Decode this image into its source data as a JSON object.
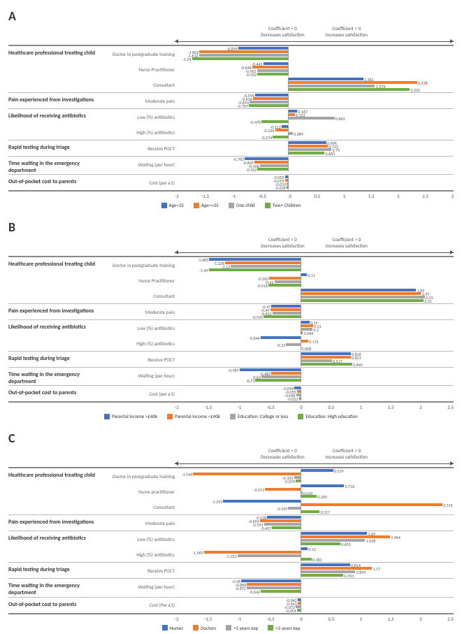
{
  "colors": {
    "blue": "#4472c4",
    "orange": "#ed7d31",
    "gray": "#a5a5a5",
    "green": "#70ad47"
  },
  "header": {
    "left": "Coefficient < 0\nDecreases satisfaction",
    "right": "Coefficient > 0\nIncreases satisfaction"
  },
  "panels": [
    {
      "letter": "A",
      "xmin": -2,
      "xmax": 3,
      "xstep": 0.5,
      "legend": [
        {
          "c": "blue",
          "t": "Age<35"
        },
        {
          "c": "orange",
          "t": "Age>=35"
        },
        {
          "c": "gray",
          "t": "One child"
        },
        {
          "c": "green",
          "t": "Two+ Children"
        }
      ],
      "cats": [
        {
          "t": "Healthcare professional treating child",
          "rows": [
            {
              "t": "Doctor in postgraduate training",
              "v": [
                -0.899,
                -1.602,
                -1.612,
                -1.74
              ]
            },
            {
              "t": "Nurse Practitioner",
              "v": [
                -0.445,
                -0.648,
                -0.562,
                -0.552
              ]
            },
            {
              "t": "Consultant",
              "v": [
                1.363,
                2.338,
                1.574,
                2.202
              ]
            }
          ]
        },
        {
          "t": "Pain experienced from investigations",
          "rows": [
            {
              "t": "Moderate pain",
              "v": [
                -0.594,
                -0.634,
                -0.694,
                -0.707
              ]
            }
          ]
        },
        {
          "t": "Likelihood of receiving antibiotics",
          "rows": [
            {
              "t": "Low (%) antibiotics",
              "v": [
                0.167,
                0.122,
                0.843,
                -0.478
              ]
            },
            {
              "t": "High (%) antibiotics",
              "v": [
                -0.112,
                -0.234,
                0.089,
                -0.274
              ]
            }
          ]
        },
        {
          "t": "Rapid testing during triage",
          "rows": [
            {
              "t": "Receive POCT",
              "v": [
                0.696,
                0.722,
                0.79,
                0.663
              ]
            }
          ]
        },
        {
          "t": "Time waiting in the emergency department",
          "rows": [
            {
              "t": "Waiting (per hour)",
              "v": [
                -0.783,
                -0.609,
                -0.506,
                -0.552
              ]
            }
          ]
        },
        {
          "t": "Out-of-pocket cost to parents",
          "rows": [
            {
              "t": "Cost (per £1)",
              "v": [
                -0.055,
                -0.055,
                -0.019,
                -0.028
              ]
            }
          ]
        }
      ]
    },
    {
      "letter": "B",
      "xmin": -2,
      "xmax": 2.5,
      "xstep": 0.5,
      "legend": [
        {
          "c": "blue",
          "t": "Parental income >£40k"
        },
        {
          "c": "orange",
          "t": "Parental income <£40k"
        },
        {
          "c": "gray",
          "t": "Education: College or less"
        },
        {
          "c": "green",
          "t": "Education: High education"
        }
      ],
      "cats": [
        {
          "t": "Healthcare professional treating child",
          "rows": [
            {
              "t": "Doctor in postgraduate training",
              "v": [
                -1.485,
                -1.226,
                -1.13,
                -1.49
              ]
            },
            {
              "t": "Nurse Practitioner",
              "v": [
                0.11,
                -0.503,
                -0.42,
                -0.516
              ]
            },
            {
              "t": "Consultant",
              "v": [
                1.89,
                1.97,
                2.03,
                2.01
              ]
            }
          ]
        },
        {
          "t": "Pain experienced from investigations",
          "rows": [
            {
              "t": "Moderate pain",
              "v": [
                -0.47,
                -0.49,
                -0.452,
                -0.595
              ]
            }
          ]
        },
        {
          "t": "Likelihood of receiving antibiotics",
          "rows": [
            {
              "t": "Low (%) antibiotics",
              "v": [
                0.15,
                0.21,
                0.2,
                0.044
              ]
            },
            {
              "t": "High (%) antibiotics",
              "v": [
                -0.644,
                0.131,
                -0.23,
                0.008
              ]
            }
          ]
        },
        {
          "t": "Rapid testing during triage",
          "rows": [
            {
              "t": "Receive POCT",
              "v": [
                0.826,
                0.823,
                0.517,
                0.849
              ]
            }
          ]
        },
        {
          "t": "Time waiting in the emergency department",
          "rows": [
            {
              "t": "Waiting (per hour)",
              "v": [
                -0.987,
                -0.469,
                -0.63,
                -0.73
              ]
            }
          ]
        },
        {
          "t": "Out-of-pocket cost to parents",
          "rows": [
            {
              "t": "Cost (per £1)",
              "v": [
                -0.094,
                -0.055,
                -0.068,
                -0.023
              ]
            }
          ]
        }
      ]
    },
    {
      "letter": "C",
      "xmin": -2,
      "xmax": 2.5,
      "xstep": 0.5,
      "legend": [
        {
          "c": "blue",
          "t": "Nurses"
        },
        {
          "c": "orange",
          "t": "Doctors"
        },
        {
          "c": "gray",
          "t": ">5 years exp"
        },
        {
          "c": "green",
          "t": "<5 years exp"
        }
      ],
      "cats": [
        {
          "t": "Healthcare professional treating child",
          "rows": [
            {
              "t": "Doctor in postgraduate training",
              "v": [
                0.539,
                -1.744,
                -0.103,
                -0.074
              ]
            },
            {
              "t": "Nurse practitioner",
              "v": [
                0.716,
                -0.571,
                0.034,
                0.269
              ]
            },
            {
              "t": "Consultant",
              "v": [
                -1.255,
                2.315,
                -0.195,
                0.317
              ]
            }
          ]
        },
        {
          "t": "Pain experienced from investigations",
          "rows": [
            {
              "t": "Moderate pain",
              "v": [
                -0.538,
                -0.659,
                -0.593,
                -0.457
              ]
            }
          ]
        },
        {
          "t": "Likelihood of receiving antibiotics",
          "rows": [
            {
              "t": "Low (%) antibiotics",
              "v": [
                1.09,
                1.464,
                1.058,
                0.655
              ]
            },
            {
              "t": "High (%) antibiotics",
              "v": [
                0.12,
                -1.569,
                -1.023,
                0.183
              ]
            }
          ]
        },
        {
          "t": "Rapid testing during triage",
          "rows": [
            {
              "t": "Receive POCT",
              "v": [
                0.814,
                1.17,
                0.899,
                0.703
              ]
            }
          ]
        },
        {
          "t": "Time waiting in the emergency department",
          "rows": [
            {
              "t": "Waiting (per hour)",
              "v": [
                -0.96,
                -0.868,
                -0.872,
                -0.642
              ]
            }
          ]
        },
        {
          "t": "Out-of-pocket cost to parents",
          "rows": [
            {
              "t": "Cost (Per £1)",
              "v": [
                -0.042,
                -0.043,
                -0.072,
                -0.054
              ]
            }
          ]
        }
      ]
    }
  ]
}
